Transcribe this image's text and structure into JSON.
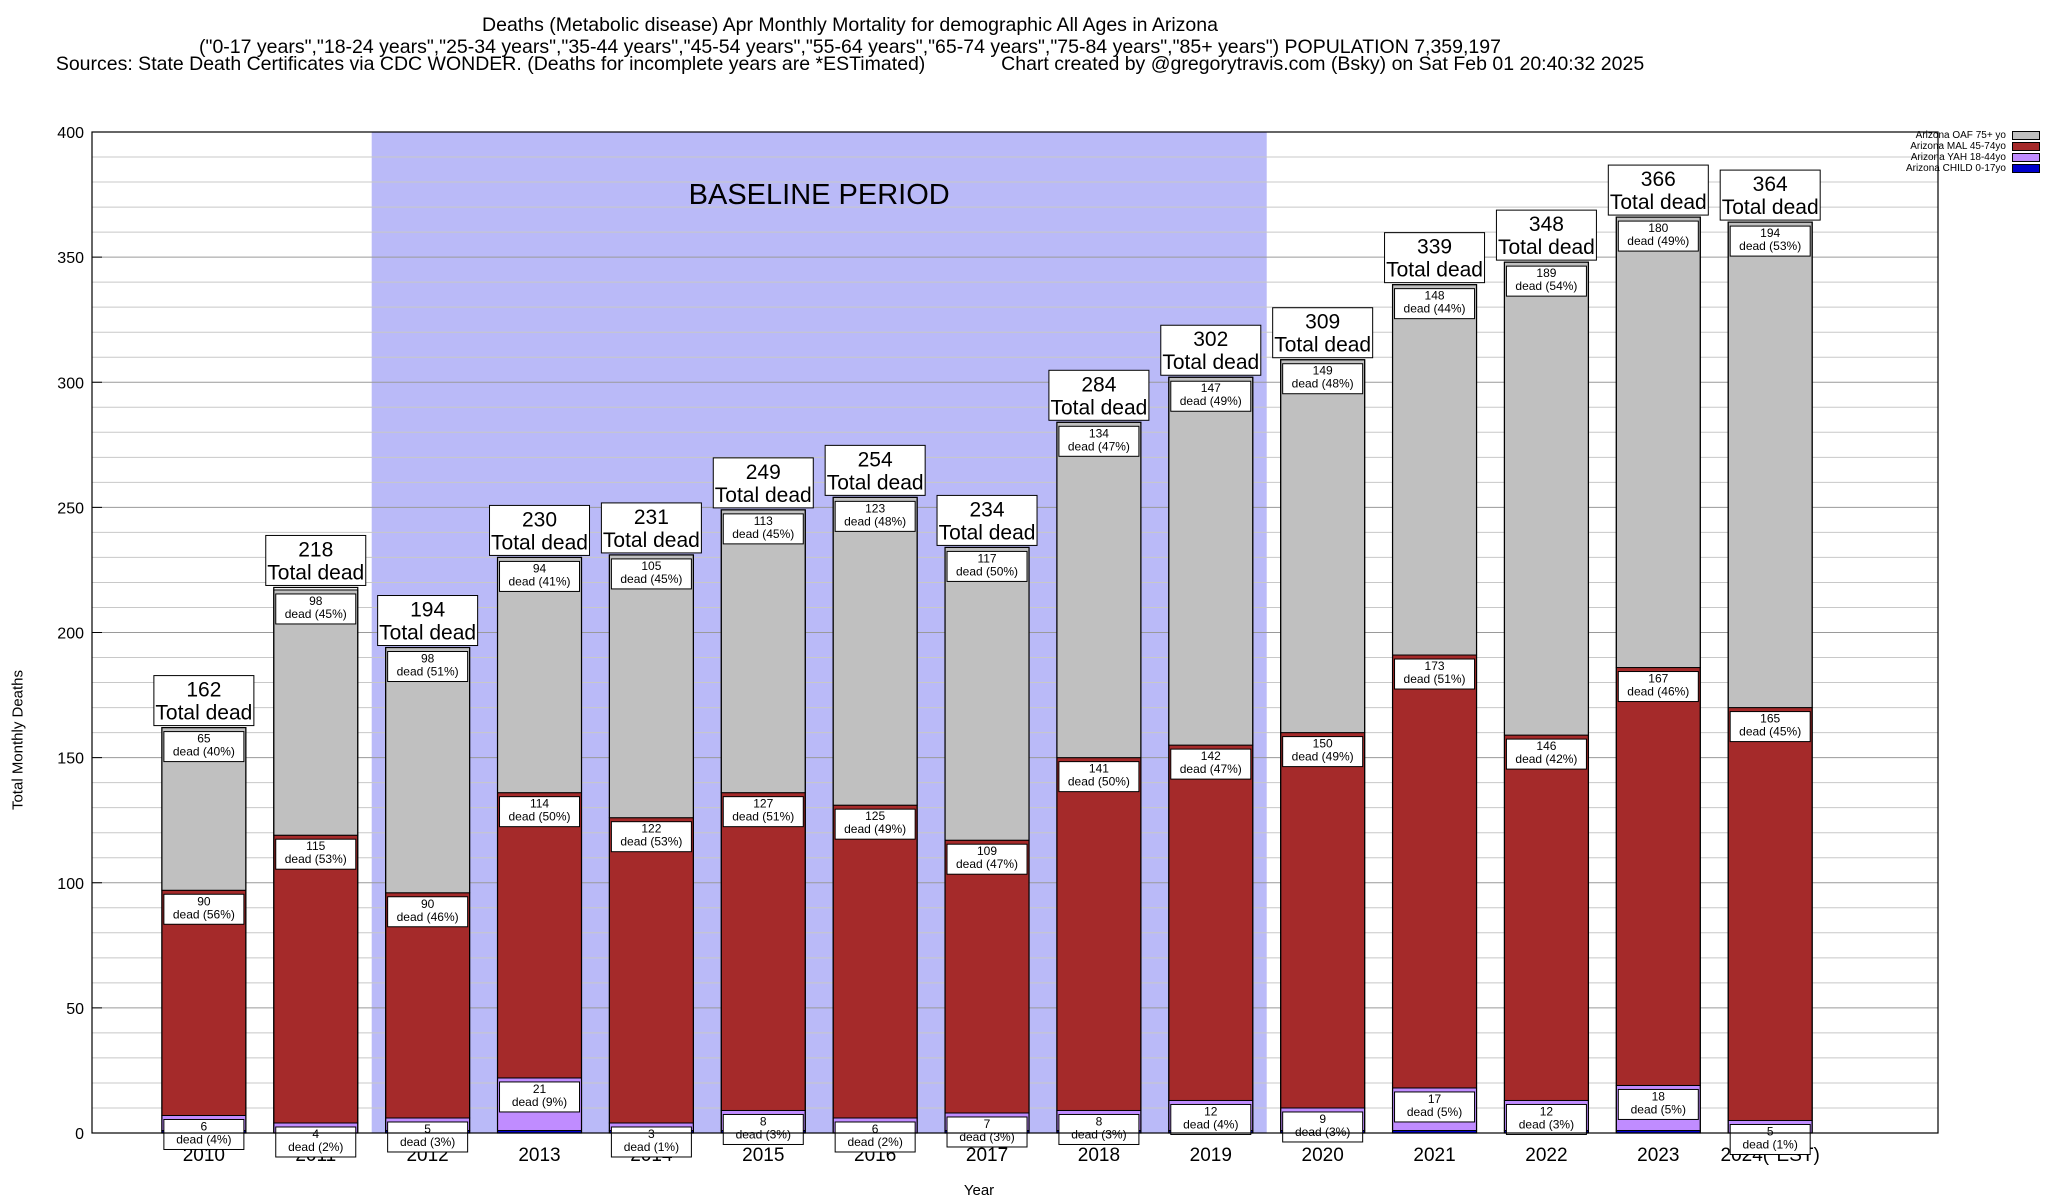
{
  "header": {
    "line1": "Deaths (Metabolic disease) Apr Monthly Mortality for demographic All Ages in Arizona",
    "line2": "(\"0-17 years\",\"18-24 years\",\"25-34 years\",\"35-44 years\",\"45-54 years\",\"55-64 years\",\"65-74 years\",\"75-84 years\",\"85+ years\") POPULATION 7,359,197",
    "line3": "Sources: State Death Certificates via CDC WONDER. (Deaths for incomplete years are *ESTimated)              Chart created by @gregorytravis.com (Bsky) on Sat Feb 01 20:40:32 2025"
  },
  "chart_data": {
    "type": "bar",
    "stacked": true,
    "ylabel": "Total Monthly Deaths",
    "xlabel": "Year",
    "ylim": [
      0,
      400
    ],
    "yticks": [
      0,
      50,
      100,
      150,
      200,
      250,
      300,
      350,
      400
    ],
    "grid": true,
    "legend_position": "top-right",
    "baseline_label": "BASELINE PERIOD",
    "baseline_range": [
      "2012",
      "2019"
    ],
    "baseline_color": "#babaf8",
    "total_suffix": "Total dead",
    "categories": [
      "2010",
      "2011",
      "2012",
      "2013",
      "2014",
      "2015",
      "2016",
      "2017",
      "2018",
      "2019",
      "2020",
      "2021",
      "2022",
      "2023",
      "2024(*EST)"
    ],
    "totals": [
      162,
      218,
      194,
      230,
      231,
      249,
      254,
      234,
      284,
      302,
      309,
      339,
      348,
      366,
      364
    ],
    "series": [
      {
        "name": "Arizona CHILD 0-17yo",
        "color": "#0000cc",
        "values": [
          1,
          0,
          1,
          1,
          1,
          1,
          0,
          1,
          1,
          1,
          1,
          1,
          1,
          1,
          0
        ],
        "labels": []
      },
      {
        "name": "Arizona YAH 18-44yo",
        "color": "#c08cff",
        "values": [
          6,
          4,
          5,
          21,
          3,
          8,
          6,
          7,
          8,
          12,
          9,
          17,
          12,
          18,
          5
        ],
        "labels": [
          "6\ndead (4%)",
          "4\ndead (2%)",
          "5\ndead (3%)",
          "21\ndead (9%)",
          "3\ndead (1%)",
          "8\ndead (3%)",
          "6\ndead (2%)",
          "7\ndead (3%)",
          "8\ndead (3%)",
          "12\ndead (4%)",
          "9\ndead (3%)",
          "17\ndead (5%)",
          "12\ndead (3%)",
          "18\ndead (5%)",
          "5\ndead (1%)"
        ]
      },
      {
        "name": "Arizona MAL 45-74yo",
        "color": "#a52a2a",
        "values": [
          90,
          115,
          90,
          114,
          122,
          127,
          125,
          109,
          141,
          142,
          150,
          173,
          146,
          167,
          165
        ],
        "labels": [
          "90\ndead (56%)",
          "115\ndead (53%)",
          "90\ndead (46%)",
          "114\ndead (50%)",
          "122\ndead (53%)",
          "127\ndead (51%)",
          "125\ndead (49%)",
          "109\ndead (47%)",
          "141\ndead (50%)",
          "142\ndead (47%)",
          "150\ndead (49%)",
          "173\ndead (51%)",
          "146\ndead (42%)",
          "167\ndead (46%)",
          "165\ndead (45%)"
        ]
      },
      {
        "name": "Arizona OAF 75+ yo",
        "color": "#c0c0c0",
        "values": [
          65,
          98,
          98,
          94,
          105,
          113,
          123,
          117,
          134,
          147,
          149,
          148,
          189,
          180,
          194
        ],
        "labels": [
          "65\ndead (40%)",
          "98\ndead (45%)",
          "98\ndead (51%)",
          "94\ndead (41%)",
          "105\ndead (45%)",
          "113\ndead (45%)",
          "123\ndead (48%)",
          "117\ndead (50%)",
          "134\ndead (47%)",
          "147\ndead (49%)",
          "149\ndead (48%)",
          "148\ndead (44%)",
          "189\ndead (54%)",
          "180\ndead (49%)",
          "194\ndead (53%)"
        ]
      }
    ]
  }
}
